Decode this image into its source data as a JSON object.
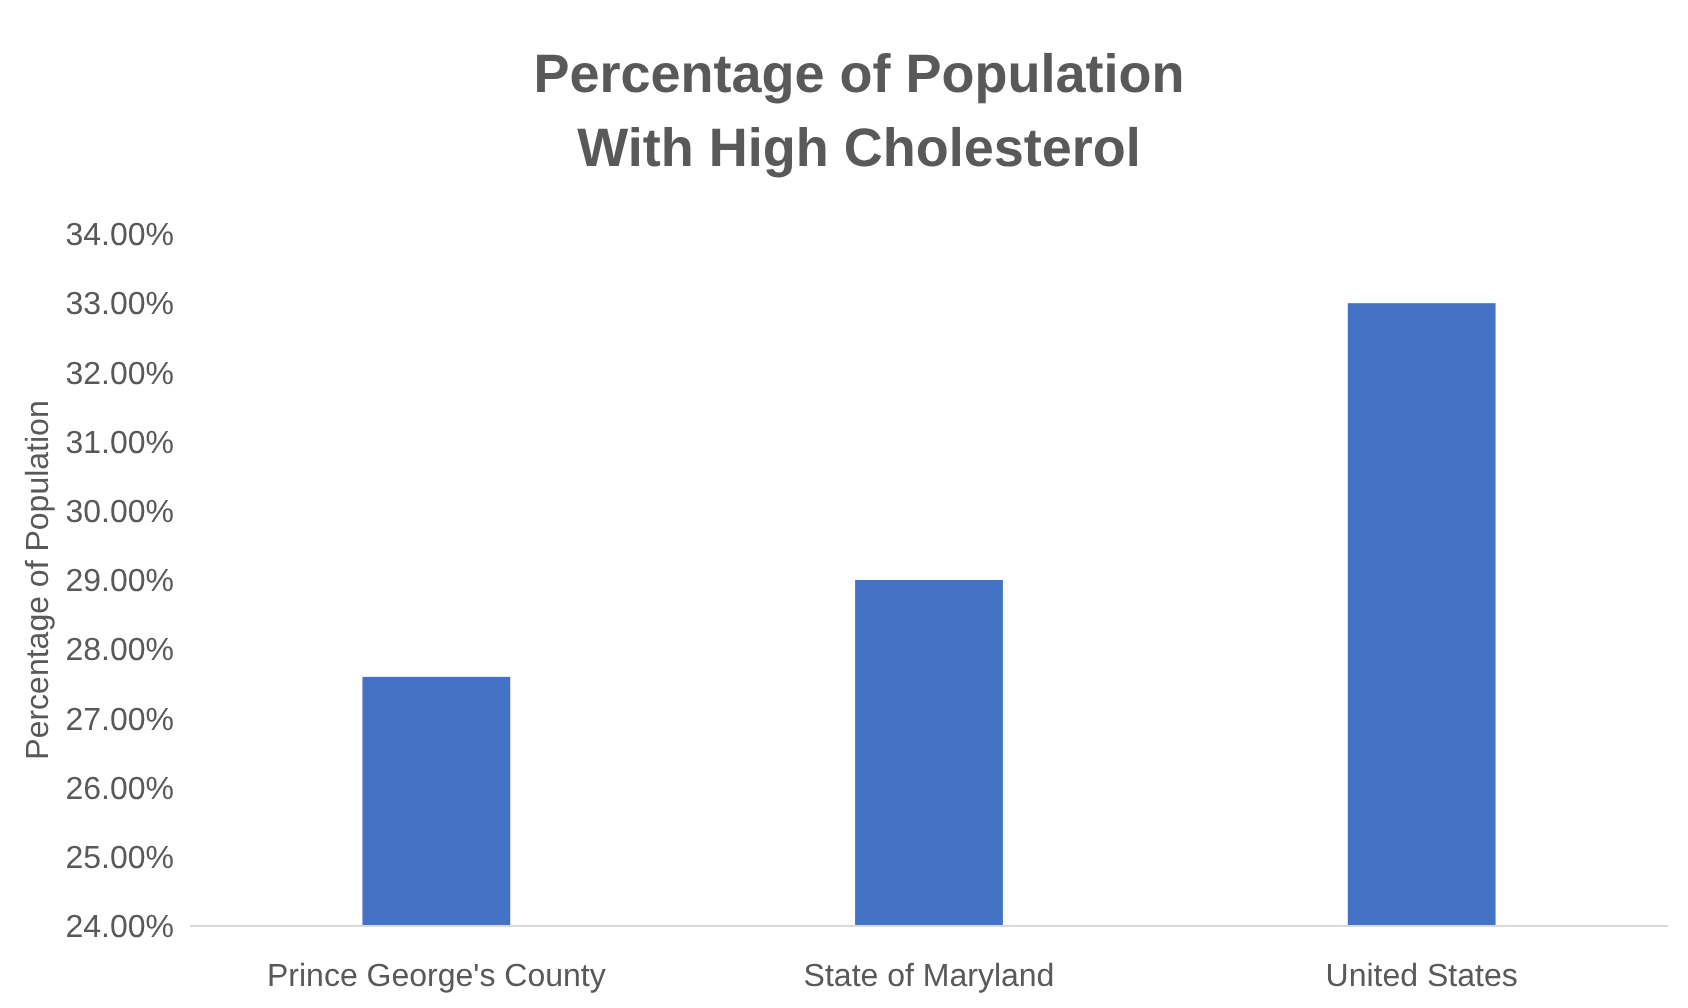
{
  "chart_data": {
    "type": "bar",
    "title": "Percentage of Population With High Cholesterol",
    "ylabel": "Percentage of Population",
    "categories": [
      "Prince George's County",
      "State of Maryland",
      "United States"
    ],
    "values": [
      27.6,
      29.0,
      33.0
    ],
    "color": "#4472c4",
    "ylim": [
      24,
      34
    ],
    "yticks": [
      {
        "value": 24,
        "label": "24.00%"
      },
      {
        "value": 25,
        "label": "25.00%"
      },
      {
        "value": 26,
        "label": "26.00%"
      },
      {
        "value": 27,
        "label": "27.00%"
      },
      {
        "value": 28,
        "label": "28.00%"
      },
      {
        "value": 29,
        "label": "29.00%"
      },
      {
        "value": 30,
        "label": "30.00%"
      },
      {
        "value": 31,
        "label": "31.00%"
      },
      {
        "value": 32,
        "label": "32.00%"
      },
      {
        "value": 33,
        "label": "33.00%"
      },
      {
        "value": 34,
        "label": "34.00%"
      }
    ],
    "grid": false
  }
}
